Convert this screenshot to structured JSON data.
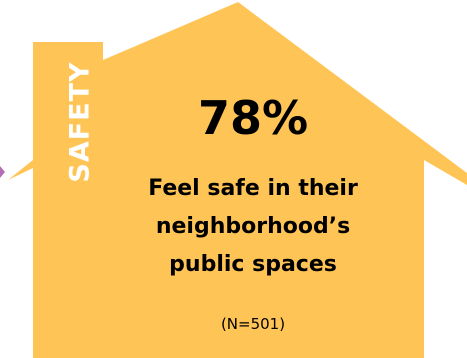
{
  "card": {
    "category": "SAFETY",
    "value": "78%",
    "description_lines": [
      "Feel safe in their",
      "neighborhood’s",
      "public spaces"
    ],
    "sample": "(N=501)"
  },
  "colors": {
    "house_fill": "#FFC456",
    "text": "#000000",
    "category_text": "#FFFFFF",
    "edge_accent": "#B46FB4"
  },
  "icons": {
    "house": "house-icon"
  }
}
